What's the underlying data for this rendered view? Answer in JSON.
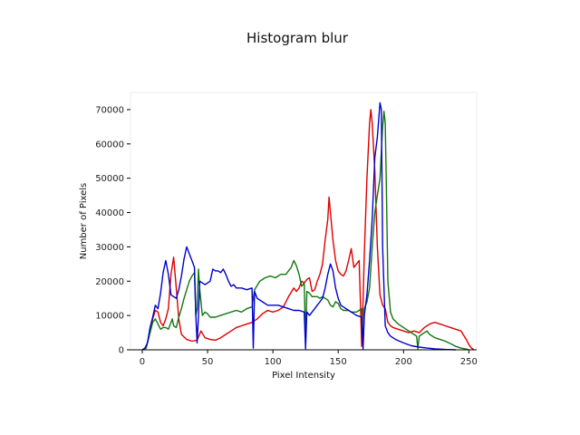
{
  "chart_data": {
    "type": "line",
    "title": "Histogram blur",
    "xlabel": "Pixel Intensity",
    "ylabel": "Number of Pixels",
    "xlim": [
      -9,
      256
    ],
    "ylim": [
      0,
      75000
    ],
    "xticks": [
      0,
      50,
      100,
      150,
      200,
      250
    ],
    "yticks": [
      0,
      10000,
      20000,
      30000,
      40000,
      50000,
      60000,
      70000
    ],
    "grid": false,
    "legend": "none",
    "series": [
      {
        "color": "#dd0000",
        "points": [
          [
            0,
            0
          ],
          [
            3,
            500
          ],
          [
            5,
            4000
          ],
          [
            8,
            9000
          ],
          [
            10,
            11500
          ],
          [
            12,
            11000
          ],
          [
            14,
            8000
          ],
          [
            16,
            7000
          ],
          [
            18,
            9000
          ],
          [
            20,
            12000
          ],
          [
            22,
            22000
          ],
          [
            24,
            27000
          ],
          [
            26,
            18000
          ],
          [
            28,
            9000
          ],
          [
            30,
            4500
          ],
          [
            34,
            3000
          ],
          [
            38,
            2500
          ],
          [
            42,
            2800
          ],
          [
            45,
            5500
          ],
          [
            48,
            3500
          ],
          [
            52,
            3000
          ],
          [
            56,
            2800
          ],
          [
            60,
            3500
          ],
          [
            64,
            4500
          ],
          [
            68,
            5500
          ],
          [
            72,
            6500
          ],
          [
            76,
            7000
          ],
          [
            80,
            7500
          ],
          [
            84,
            8000
          ],
          [
            88,
            9000
          ],
          [
            92,
            10500
          ],
          [
            96,
            11500
          ],
          [
            100,
            11000
          ],
          [
            104,
            11500
          ],
          [
            108,
            12500
          ],
          [
            112,
            15500
          ],
          [
            116,
            18000
          ],
          [
            118,
            17000
          ],
          [
            120,
            18000
          ],
          [
            122,
            20000
          ],
          [
            124,
            19500
          ],
          [
            126,
            20500
          ],
          [
            128,
            21000
          ],
          [
            130,
            17000
          ],
          [
            132,
            17500
          ],
          [
            134,
            20000
          ],
          [
            136,
            22000
          ],
          [
            138,
            25000
          ],
          [
            140,
            32000
          ],
          [
            142,
            38000
          ],
          [
            143,
            44500
          ],
          [
            144,
            40000
          ],
          [
            146,
            32000
          ],
          [
            148,
            26000
          ],
          [
            150,
            23000
          ],
          [
            152,
            22000
          ],
          [
            154,
            21500
          ],
          [
            156,
            23000
          ],
          [
            158,
            26000
          ],
          [
            160,
            29500
          ],
          [
            162,
            24000
          ],
          [
            164,
            25000
          ],
          [
            166,
            26000
          ],
          [
            167,
            14000
          ],
          [
            168,
            1000
          ],
          [
            169,
            14000
          ],
          [
            170,
            28000
          ],
          [
            172,
            50000
          ],
          [
            174,
            66000
          ],
          [
            175,
            70000
          ],
          [
            176,
            66000
          ],
          [
            178,
            52000
          ],
          [
            180,
            30000
          ],
          [
            182,
            16000
          ],
          [
            184,
            13000
          ],
          [
            186,
            12000
          ],
          [
            188,
            8000
          ],
          [
            190,
            7000
          ],
          [
            192,
            6500
          ],
          [
            196,
            6000
          ],
          [
            200,
            5500
          ],
          [
            204,
            5000
          ],
          [
            208,
            5500
          ],
          [
            212,
            5000
          ],
          [
            216,
            6500
          ],
          [
            220,
            7500
          ],
          [
            224,
            8000
          ],
          [
            228,
            7500
          ],
          [
            232,
            7000
          ],
          [
            236,
            6500
          ],
          [
            240,
            6000
          ],
          [
            244,
            5500
          ],
          [
            248,
            3000
          ],
          [
            250,
            1500
          ],
          [
            252,
            500
          ],
          [
            254,
            0
          ]
        ]
      },
      {
        "color": "#117711",
        "points": [
          [
            0,
            0
          ],
          [
            3,
            500
          ],
          [
            5,
            3500
          ],
          [
            8,
            8000
          ],
          [
            10,
            9000
          ],
          [
            12,
            7500
          ],
          [
            14,
            6000
          ],
          [
            16,
            6500
          ],
          [
            18,
            6500
          ],
          [
            20,
            6000
          ],
          [
            22,
            8000
          ],
          [
            23,
            9000
          ],
          [
            24,
            7000
          ],
          [
            26,
            6500
          ],
          [
            28,
            9500
          ],
          [
            30,
            12000
          ],
          [
            32,
            15000
          ],
          [
            34,
            17500
          ],
          [
            36,
            20000
          ],
          [
            38,
            21500
          ],
          [
            40,
            22500
          ],
          [
            41,
            10000
          ],
          [
            42,
            12000
          ],
          [
            43,
            23500
          ],
          [
            44,
            17500
          ],
          [
            46,
            10000
          ],
          [
            48,
            11000
          ],
          [
            50,
            10500
          ],
          [
            52,
            9500
          ],
          [
            56,
            9500
          ],
          [
            60,
            10000
          ],
          [
            64,
            10500
          ],
          [
            68,
            11000
          ],
          [
            72,
            11500
          ],
          [
            76,
            11000
          ],
          [
            80,
            12000
          ],
          [
            84,
            12500
          ],
          [
            86,
            17500
          ],
          [
            90,
            20000
          ],
          [
            94,
            21000
          ],
          [
            98,
            21500
          ],
          [
            102,
            21000
          ],
          [
            106,
            22000
          ],
          [
            110,
            22000
          ],
          [
            114,
            24000
          ],
          [
            116,
            26000
          ],
          [
            118,
            24500
          ],
          [
            120,
            22000
          ],
          [
            122,
            18500
          ],
          [
            124,
            19500
          ],
          [
            125,
            3000
          ],
          [
            126,
            17000
          ],
          [
            128,
            16500
          ],
          [
            130,
            15500
          ],
          [
            132,
            15500
          ],
          [
            134,
            15500
          ],
          [
            136,
            15000
          ],
          [
            138,
            15500
          ],
          [
            140,
            15000
          ],
          [
            142,
            14500
          ],
          [
            144,
            13000
          ],
          [
            146,
            12500
          ],
          [
            148,
            14000
          ],
          [
            150,
            13500
          ],
          [
            152,
            12000
          ],
          [
            154,
            11500
          ],
          [
            156,
            11500
          ],
          [
            158,
            11500
          ],
          [
            160,
            11000
          ],
          [
            162,
            11000
          ],
          [
            164,
            11000
          ],
          [
            166,
            11500
          ],
          [
            168,
            12000
          ],
          [
            169,
            1000
          ],
          [
            170,
            12000
          ],
          [
            172,
            14000
          ],
          [
            174,
            18000
          ],
          [
            176,
            30000
          ],
          [
            178,
            40000
          ],
          [
            180,
            45000
          ],
          [
            182,
            50000
          ],
          [
            184,
            65000
          ],
          [
            185,
            69500
          ],
          [
            186,
            66000
          ],
          [
            187,
            45000
          ],
          [
            188,
            20000
          ],
          [
            190,
            11000
          ],
          [
            192,
            9000
          ],
          [
            196,
            7500
          ],
          [
            200,
            6500
          ],
          [
            204,
            5500
          ],
          [
            208,
            4500
          ],
          [
            210,
            4000
          ],
          [
            211,
            300
          ],
          [
            212,
            4000
          ],
          [
            214,
            4500
          ],
          [
            216,
            5000
          ],
          [
            218,
            5500
          ],
          [
            220,
            4500
          ],
          [
            224,
            3500
          ],
          [
            228,
            3000
          ],
          [
            232,
            2500
          ],
          [
            236,
            1800
          ],
          [
            240,
            1000
          ],
          [
            244,
            500
          ],
          [
            248,
            200
          ],
          [
            250,
            0
          ]
        ]
      },
      {
        "color": "#0000cc",
        "points": [
          [
            0,
            0
          ],
          [
            2,
            500
          ],
          [
            4,
            2000
          ],
          [
            6,
            6500
          ],
          [
            8,
            9500
          ],
          [
            10,
            13000
          ],
          [
            12,
            12000
          ],
          [
            14,
            16500
          ],
          [
            16,
            22500
          ],
          [
            18,
            26000
          ],
          [
            20,
            22000
          ],
          [
            22,
            16000
          ],
          [
            24,
            15500
          ],
          [
            26,
            15000
          ],
          [
            28,
            17500
          ],
          [
            30,
            21500
          ],
          [
            32,
            26500
          ],
          [
            34,
            30000
          ],
          [
            36,
            28000
          ],
          [
            38,
            26000
          ],
          [
            40,
            24000
          ],
          [
            41,
            10000
          ],
          [
            42,
            2000
          ],
          [
            43,
            10000
          ],
          [
            44,
            20000
          ],
          [
            46,
            19500
          ],
          [
            48,
            19000
          ],
          [
            52,
            20000
          ],
          [
            54,
            23500
          ],
          [
            56,
            23000
          ],
          [
            58,
            23000
          ],
          [
            60,
            22500
          ],
          [
            62,
            23500
          ],
          [
            64,
            22000
          ],
          [
            66,
            20000
          ],
          [
            68,
            18500
          ],
          [
            70,
            19000
          ],
          [
            72,
            18000
          ],
          [
            76,
            18000
          ],
          [
            80,
            17500
          ],
          [
            84,
            18000
          ],
          [
            85,
            500
          ],
          [
            86,
            17000
          ],
          [
            88,
            15000
          ],
          [
            92,
            14000
          ],
          [
            96,
            13000
          ],
          [
            100,
            13000
          ],
          [
            104,
            13000
          ],
          [
            108,
            12500
          ],
          [
            112,
            12000
          ],
          [
            116,
            11500
          ],
          [
            120,
            11500
          ],
          [
            124,
            11000
          ],
          [
            125,
            300
          ],
          [
            126,
            11000
          ],
          [
            128,
            10000
          ],
          [
            130,
            11000
          ],
          [
            132,
            12000
          ],
          [
            134,
            13000
          ],
          [
            136,
            14000
          ],
          [
            138,
            15000
          ],
          [
            140,
            18000
          ],
          [
            142,
            22000
          ],
          [
            144,
            25000
          ],
          [
            146,
            23000
          ],
          [
            148,
            18000
          ],
          [
            150,
            15000
          ],
          [
            152,
            13000
          ],
          [
            156,
            12000
          ],
          [
            160,
            11000
          ],
          [
            164,
            10000
          ],
          [
            168,
            9500
          ],
          [
            169,
            200
          ],
          [
            170,
            10000
          ],
          [
            172,
            16000
          ],
          [
            174,
            26000
          ],
          [
            176,
            38000
          ],
          [
            178,
            56000
          ],
          [
            180,
            62000
          ],
          [
            182,
            72000
          ],
          [
            183,
            70000
          ],
          [
            184,
            30000
          ],
          [
            186,
            7000
          ],
          [
            188,
            5000
          ],
          [
            190,
            4000
          ],
          [
            194,
            3000
          ],
          [
            200,
            2000
          ],
          [
            206,
            1200
          ],
          [
            212,
            800
          ],
          [
            218,
            500
          ],
          [
            224,
            300
          ],
          [
            232,
            100
          ],
          [
            240,
            0
          ]
        ]
      }
    ]
  }
}
